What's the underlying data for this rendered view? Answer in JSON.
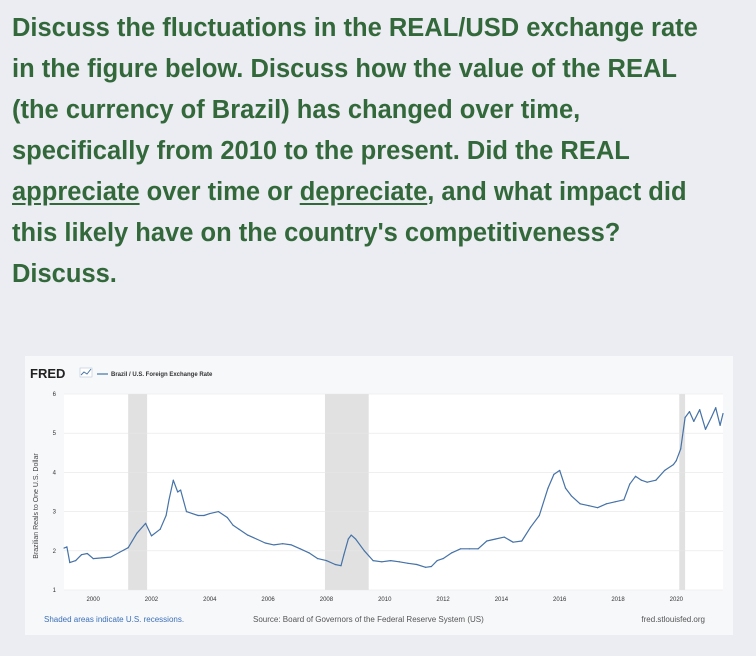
{
  "question": {
    "line1": "Discuss the fluctuations in the REAL/USD exchange rate",
    "line2": "in the figure below.  Discuss how the value of the REAL",
    "line3": "(the currency of Brazil) has changed over time,",
    "line4": "specifically from 2010 to the present.  Did the REAL",
    "line5_u1": "appreciate",
    "line5_mid": " over time or ",
    "line5_u2": "depreciate",
    "line5_end": ", and what impact did",
    "line6": "this likely have on the country's competitiveness?",
    "line7": "Discuss."
  },
  "colors": {
    "question_text": "#33693a",
    "series": "#4572a7",
    "recession": "#e1e1e1",
    "link": "#3b6fb6"
  },
  "chart_data": {
    "type": "line",
    "logo": "FRED",
    "legend_label": "Brazil / U.S. Foreign Exchange Rate",
    "ylabel": "Brazilian Reals to One U.S. Dollar",
    "xlabel": "",
    "x_ticks": [
      "2000",
      "2002",
      "2004",
      "2006",
      "2008",
      "2010",
      "2012",
      "2014",
      "2016",
      "2018",
      "2020"
    ],
    "y_ticks": [
      "1",
      "2",
      "3",
      "4",
      "5",
      "6"
    ],
    "xlim": [
      1999.0,
      2021.6
    ],
    "ylim": [
      1,
      6
    ],
    "grid": "horizontal",
    "recessions": [
      [
        2001.2,
        2001.85
      ],
      [
        2007.95,
        2009.45
      ],
      [
        2020.1,
        2020.3
      ]
    ],
    "series": [
      {
        "x": [
          1999.0,
          1999.1,
          1999.2,
          1999.4,
          1999.6,
          1999.8,
          2000.0,
          2000.3,
          2000.6,
          2000.9,
          2001.2,
          2001.5,
          2001.8,
          2002.0,
          2002.3,
          2002.5,
          2002.6,
          2002.75,
          2002.9,
          2003.0,
          2003.2,
          2003.4,
          2003.6,
          2003.8,
          2004.0,
          2004.3,
          2004.6,
          2004.8,
          2005.0,
          2005.3,
          2005.6,
          2005.9,
          2006.2,
          2006.5,
          2006.8,
          2007.1,
          2007.4,
          2007.7,
          2008.0,
          2008.3,
          2008.5,
          2008.6,
          2008.75,
          2008.85,
          2009.0,
          2009.3,
          2009.6,
          2009.9,
          2010.2,
          2010.5,
          2010.8,
          2011.1,
          2011.4,
          2011.6,
          2011.8,
          2012.0,
          2012.3,
          2012.6,
          2012.9,
          2013.2,
          2013.5,
          2013.8,
          2014.1,
          2014.4,
          2014.7,
          2015.0,
          2015.3,
          2015.6,
          2015.8,
          2016.0,
          2016.2,
          2016.4,
          2016.7,
          2017.0,
          2017.3,
          2017.6,
          2017.9,
          2018.2,
          2018.4,
          2018.6,
          2018.8,
          2019.0,
          2019.3,
          2019.6,
          2019.9,
          2020.0,
          2020.15,
          2020.3,
          2020.45,
          2020.6,
          2020.8,
          2021.0,
          2021.2,
          2021.35,
          2021.5,
          2021.6
        ],
        "y": [
          2.07,
          2.1,
          1.7,
          1.75,
          1.9,
          1.93,
          1.8,
          1.82,
          1.84,
          1.96,
          2.08,
          2.45,
          2.7,
          2.38,
          2.55,
          2.9,
          3.3,
          3.8,
          3.5,
          3.55,
          3.0,
          2.95,
          2.9,
          2.9,
          2.95,
          3.0,
          2.85,
          2.65,
          2.55,
          2.4,
          2.3,
          2.2,
          2.15,
          2.18,
          2.15,
          2.05,
          1.95,
          1.8,
          1.75,
          1.65,
          1.62,
          1.9,
          2.3,
          2.4,
          2.3,
          2.0,
          1.75,
          1.72,
          1.75,
          1.72,
          1.68,
          1.65,
          1.58,
          1.6,
          1.75,
          1.8,
          1.95,
          2.05,
          2.05,
          2.05,
          2.25,
          2.3,
          2.35,
          2.22,
          2.25,
          2.6,
          2.9,
          3.6,
          3.95,
          4.05,
          3.6,
          3.4,
          3.2,
          3.15,
          3.1,
          3.2,
          3.25,
          3.3,
          3.7,
          3.9,
          3.8,
          3.75,
          3.8,
          4.05,
          4.2,
          4.3,
          4.6,
          5.4,
          5.55,
          5.3,
          5.6,
          5.1,
          5.4,
          5.65,
          5.2,
          5.5
        ]
      }
    ],
    "footer_left": "Shaded areas indicate U.S. recessions.",
    "footer_center": "Source: Board of Governors of the Federal Reserve System (US)",
    "footer_right": "fred.stlouisfed.org"
  }
}
